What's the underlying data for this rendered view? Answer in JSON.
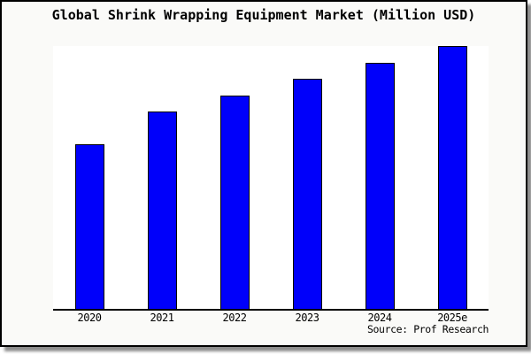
{
  "chart_data": {
    "type": "bar",
    "title": "Global Shrink Wrapping Equipment Market (Million USD)",
    "categories": [
      "2020",
      "2021",
      "2022",
      "2023",
      "2024",
      "2025e"
    ],
    "values": [
      100,
      120,
      130,
      140,
      150,
      160
    ],
    "values_are_relative": true,
    "xlabel": "",
    "ylabel": "",
    "ylim": [
      0,
      160
    ],
    "y_axis_visible": false,
    "grid": false,
    "legend": "none",
    "bar_color": "#0000fa",
    "bar_border_color": "#000000"
  },
  "source": {
    "label": "Source: Prof Research"
  },
  "colors": {
    "card_background": "#fafaf8",
    "plot_background": "#ffffff",
    "card_border": "#000000",
    "axis": "#000000",
    "shadow": "#8c8c8c"
  }
}
